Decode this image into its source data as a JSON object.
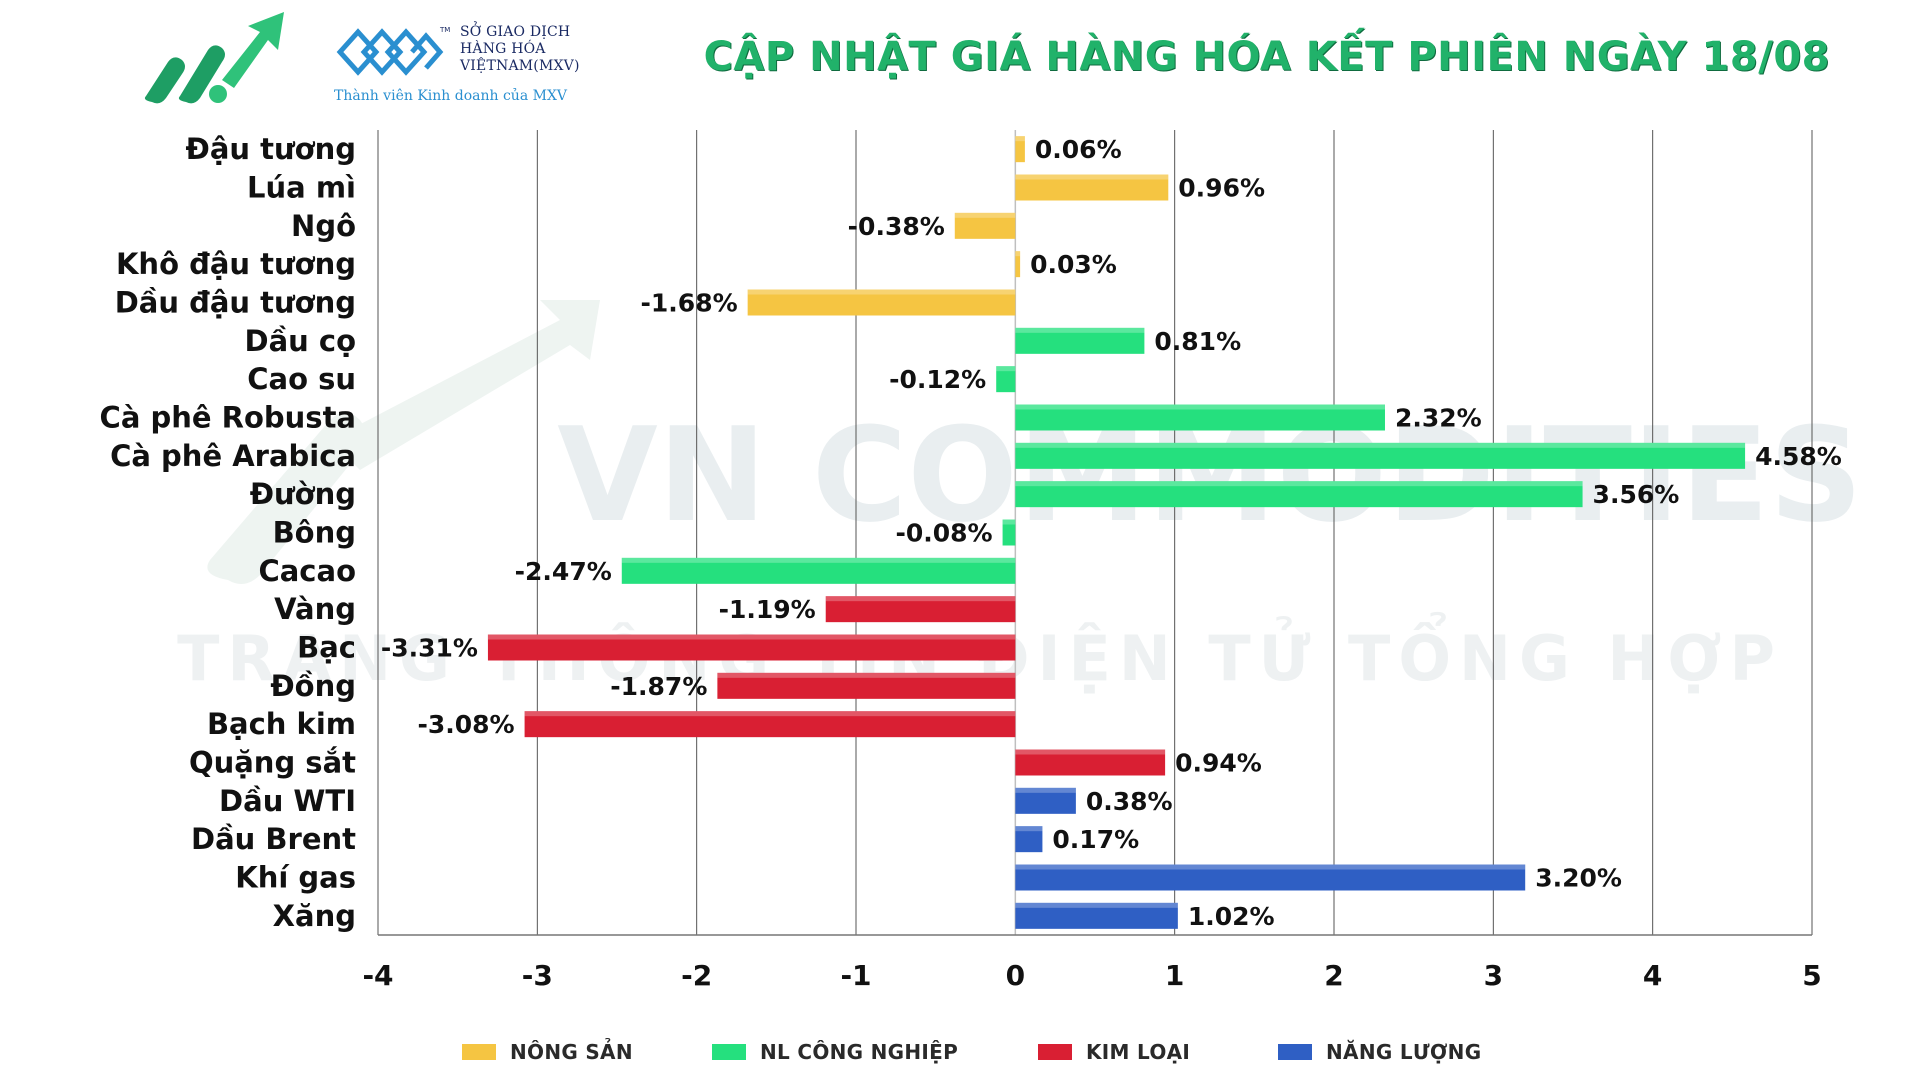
{
  "header": {
    "title": "CẬP NHẬT GIÁ HÀNG HÓA KẾT PHIÊN NGÀY 18/08",
    "partner_lines": [
      "SỞ GIAO DỊCH",
      "HÀNG HÓA",
      "VIỆTNAM(MXV)"
    ],
    "partner_tm": "TM",
    "partner_sub": "Thành viên Kinh doanh của MXV"
  },
  "watermark": {
    "line1": "VN COMMODITIES",
    "line2": "TRANG THÔNG TIN ĐIỆN TỬ TỔNG HỢP"
  },
  "colors": {
    "nong_san": "#f5c542",
    "nl_cong_nghiep": "#25e07e",
    "kim_loai": "#d91f33",
    "nang_luong": "#2f5fc4",
    "title": "#21b26a"
  },
  "legend": [
    {
      "key": "nong_san",
      "label": "NÔNG SẢN"
    },
    {
      "key": "nl_cong_nghiep",
      "label": "NL CÔNG NGHIỆP"
    },
    {
      "key": "kim_loai",
      "label": "KIM LOẠI"
    },
    {
      "key": "nang_luong",
      "label": "NĂNG LƯỢNG"
    }
  ],
  "chart_data": {
    "type": "bar",
    "orientation": "horizontal",
    "title": "CẬP NHẬT GIÁ HÀNG HÓA KẾT PHIÊN NGÀY 18/08",
    "xlim": [
      -4,
      5
    ],
    "x_ticks": [
      -4,
      -3,
      -2,
      -1,
      0,
      1,
      2,
      3,
      4,
      5
    ],
    "grid": true,
    "legend_position": "bottom",
    "categories": [
      "Đậu tương",
      "Lúa mì",
      "Ngô",
      "Khô đậu tương",
      "Dầu đậu tương",
      "Dầu cọ",
      "Cao su",
      "Cà phê Robusta",
      "Cà phê Arabica",
      "Đường",
      "Bông",
      "Cacao",
      "Vàng",
      "Bạc",
      "Đồng",
      "Bạch kim",
      "Quặng sắt",
      "Dầu WTI",
      "Dầu Brent",
      "Khí gas",
      "Xăng"
    ],
    "values": [
      0.06,
      0.96,
      -0.38,
      0.03,
      -1.68,
      0.81,
      -0.12,
      2.32,
      4.58,
      3.56,
      -0.08,
      -2.47,
      -1.19,
      -3.31,
      -1.87,
      -3.08,
      0.94,
      0.38,
      0.17,
      3.2,
      1.02
    ],
    "labels": [
      "0.06%",
      "0.96%",
      "-0.38%",
      "0.03%",
      "-1.68%",
      "0.81%",
      "-0.12%",
      "2.32%",
      "4.58%",
      "3.56%",
      "-0.08%",
      "-2.47%",
      "-1.19%",
      "-3.31%",
      "-1.87%",
      "-3.08%",
      "0.94%",
      "0.38%",
      "0.17%",
      "3.20%",
      "1.02%"
    ],
    "groups": [
      "nong_san",
      "nong_san",
      "nong_san",
      "nong_san",
      "nong_san",
      "nl_cong_nghiep",
      "nl_cong_nghiep",
      "nl_cong_nghiep",
      "nl_cong_nghiep",
      "nl_cong_nghiep",
      "nl_cong_nghiep",
      "nl_cong_nghiep",
      "kim_loai",
      "kim_loai",
      "kim_loai",
      "kim_loai",
      "kim_loai",
      "nang_luong",
      "nang_luong",
      "nang_luong",
      "nang_luong"
    ]
  }
}
